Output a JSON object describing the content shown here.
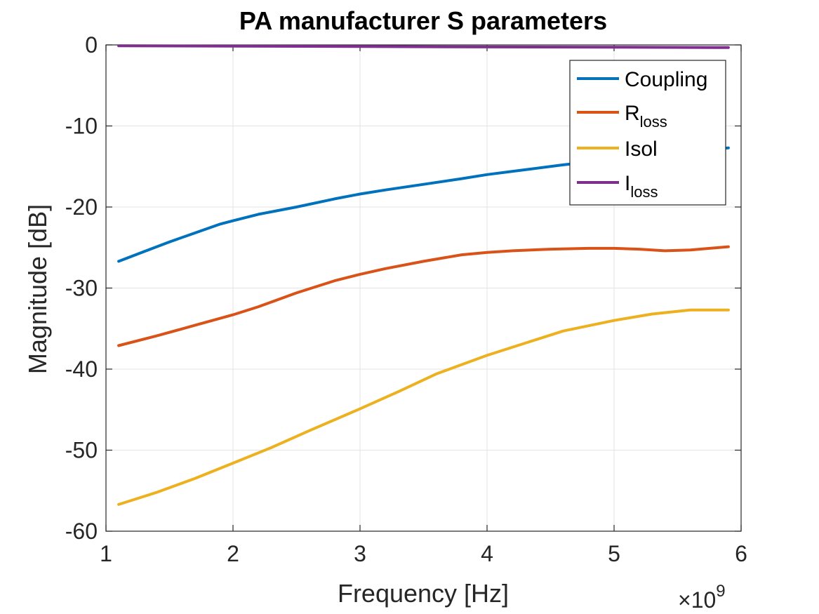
{
  "chart_data": {
    "type": "line",
    "title": "PA manufacturer S parameters",
    "xlabel": "Frequency [Hz]",
    "ylabel": "Magnitude [dB]",
    "x_exponent_label": {
      "base": "×10",
      "exp": "9"
    },
    "xlim": [
      1,
      6
    ],
    "ylim": [
      -60,
      0
    ],
    "x_ticks": [
      1,
      2,
      3,
      4,
      5,
      6
    ],
    "y_ticks": [
      0,
      -10,
      -20,
      -30,
      -40,
      -50,
      -60
    ],
    "x_tick_labels": [
      "1",
      "2",
      "3",
      "4",
      "5",
      "6"
    ],
    "y_tick_labels": [
      "0",
      "-10",
      "-20",
      "-30",
      "-40",
      "-50",
      "-60"
    ],
    "x_unit_note": "x values in units of 1e9 Hz",
    "grid": true,
    "legend_position": "top-right",
    "legend": [
      {
        "main": "Coupling",
        "sub": ""
      },
      {
        "main": "R",
        "sub": "loss"
      },
      {
        "main": "Isol",
        "sub": ""
      },
      {
        "main": "I",
        "sub": "loss"
      }
    ],
    "series": [
      {
        "name": "Coupling",
        "color": "#0072BD",
        "x": [
          1.1,
          1.3,
          1.5,
          1.7,
          1.9,
          2.0,
          2.2,
          2.5,
          2.8,
          3.0,
          3.2,
          3.5,
          3.8,
          4.0,
          4.3,
          4.6,
          5.0,
          5.5,
          5.9
        ],
        "y": [
          -26.7,
          -25.5,
          -24.3,
          -23.2,
          -22.1,
          -21.7,
          -20.9,
          -20.0,
          -19.0,
          -18.4,
          -17.9,
          -17.2,
          -16.5,
          -16.0,
          -15.4,
          -14.8,
          -14.1,
          -13.3,
          -12.7
        ]
      },
      {
        "name": "Rloss",
        "color": "#D95319",
        "x": [
          1.1,
          1.4,
          1.7,
          2.0,
          2.2,
          2.5,
          2.8,
          3.0,
          3.2,
          3.5,
          3.8,
          4.0,
          4.2,
          4.5,
          4.8,
          5.0,
          5.2,
          5.4,
          5.6,
          5.9
        ],
        "y": [
          -37.1,
          -35.9,
          -34.6,
          -33.3,
          -32.3,
          -30.6,
          -29.1,
          -28.3,
          -27.6,
          -26.7,
          -25.9,
          -25.6,
          -25.4,
          -25.2,
          -25.1,
          -25.1,
          -25.2,
          -25.4,
          -25.3,
          -24.9
        ]
      },
      {
        "name": "Isol",
        "color": "#EDB120",
        "x": [
          1.1,
          1.4,
          1.7,
          2.0,
          2.3,
          2.6,
          3.0,
          3.3,
          3.6,
          4.0,
          4.3,
          4.6,
          5.0,
          5.3,
          5.6,
          5.9
        ],
        "y": [
          -56.7,
          -55.2,
          -53.5,
          -51.6,
          -49.7,
          -47.6,
          -44.9,
          -42.8,
          -40.6,
          -38.3,
          -36.8,
          -35.3,
          -34.0,
          -33.2,
          -32.7,
          -32.7
        ]
      },
      {
        "name": "Iloss",
        "color": "#7E2F8E",
        "x": [
          1.1,
          2.0,
          3.0,
          4.0,
          5.0,
          5.9
        ],
        "y": [
          -0.1,
          -0.15,
          -0.2,
          -0.25,
          -0.28,
          -0.33
        ]
      }
    ]
  }
}
